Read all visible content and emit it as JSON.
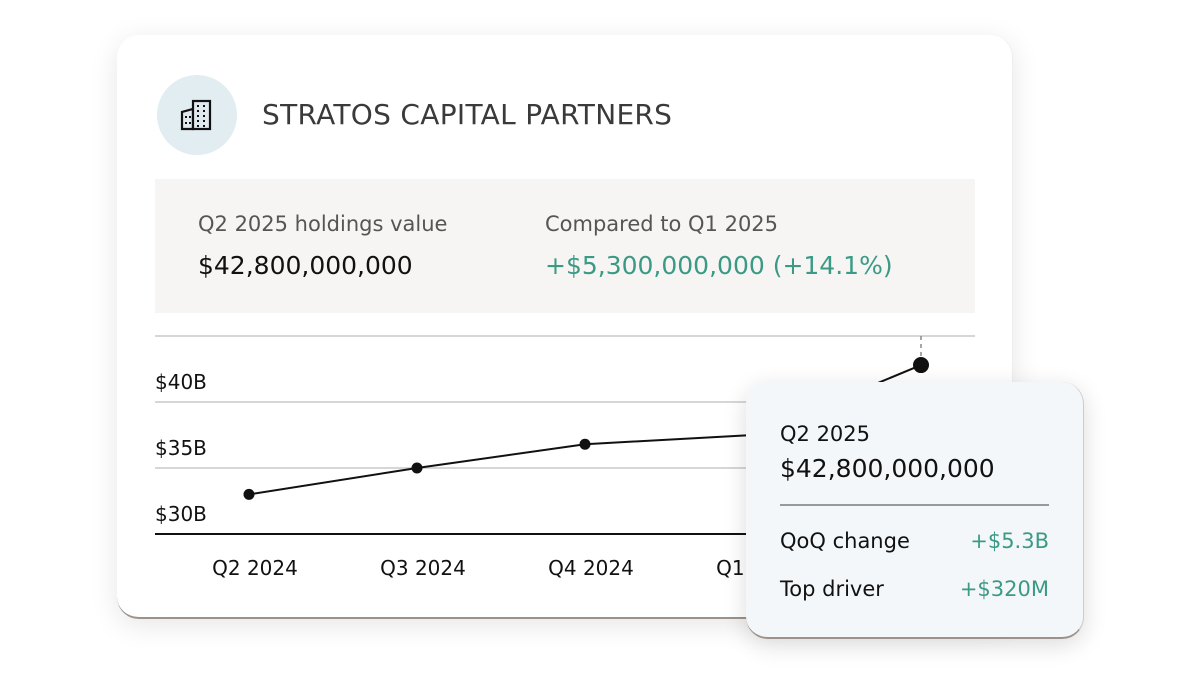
{
  "company": {
    "name": "STRATOS CAPITAL PARTNERS",
    "icon": "building-icon"
  },
  "summary": {
    "holdings_label": "Q2 2025 holdings value",
    "holdings_value": "$42,800,000,000",
    "compare_label": "Compared to Q1 2025",
    "compare_value": "+$5,300,000,000 (+14.1%)"
  },
  "colors": {
    "positive": "#3a9a85",
    "icon_bg": "#e2edf2",
    "panel_bg": "#f6f5f3",
    "tooltip_bg": "#f4f7fa"
  },
  "chart_data": {
    "type": "line",
    "categories": [
      "Q2 2024",
      "Q3 2024",
      "Q4 2024",
      "Q1 2025",
      "Q2 2025"
    ],
    "values": [
      33.0,
      35.0,
      36.8,
      37.5,
      42.8
    ],
    "y_ticks": [
      {
        "value": 30,
        "label": "$30B"
      },
      {
        "value": 35,
        "label": "$35B"
      },
      {
        "value": 40,
        "label": "$40B"
      }
    ],
    "ylim": [
      30,
      45
    ],
    "grid": true,
    "highlighted": "Q2 2025"
  },
  "tooltip": {
    "quarter": "Q2 2025",
    "value": "$42,800,000,000",
    "rows": [
      {
        "label": "QoQ change",
        "value": "+$5.3B"
      },
      {
        "label": "Top driver",
        "value": "+$320M"
      }
    ]
  }
}
